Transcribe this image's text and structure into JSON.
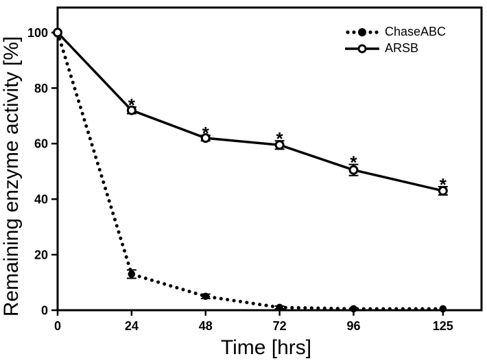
{
  "chart_data": {
    "type": "line",
    "title": "",
    "xlabel": "Time [hrs]",
    "ylabel": "Remaining enzyme activity [%]",
    "x": [
      0,
      24,
      48,
      72,
      96,
      125
    ],
    "x_tick_labels": [
      "0",
      "24",
      "48",
      "72",
      "96",
      "125"
    ],
    "y_ticks": [
      0,
      20,
      40,
      60,
      80,
      100
    ],
    "xlim": [
      0,
      137.5
    ],
    "ylim": [
      0,
      109
    ],
    "grid": false,
    "legend_position": "top-right-inside",
    "colors": {
      "background": "#ffffff",
      "foreground": "#000000"
    },
    "series": [
      {
        "name": "ChaseABC",
        "line_style": "dotted",
        "marker": "filled-circle",
        "color": "#000000",
        "values": [
          100,
          13,
          5,
          1,
          0.5,
          0.5
        ],
        "errors": [
          0,
          1.5,
          0.8,
          0.5,
          0.3,
          0.3
        ],
        "significance": [
          "",
          "",
          "",
          "",
          "",
          ""
        ]
      },
      {
        "name": "ARSB",
        "line_style": "solid",
        "marker": "open-circle",
        "color": "#000000",
        "values": [
          100,
          72,
          62,
          59.5,
          50.5,
          43
        ],
        "errors": [
          0,
          1.2,
          1.0,
          1.5,
          2.0,
          1.5
        ],
        "significance": [
          "",
          "*",
          "*",
          "*",
          "*",
          "*"
        ]
      }
    ]
  }
}
